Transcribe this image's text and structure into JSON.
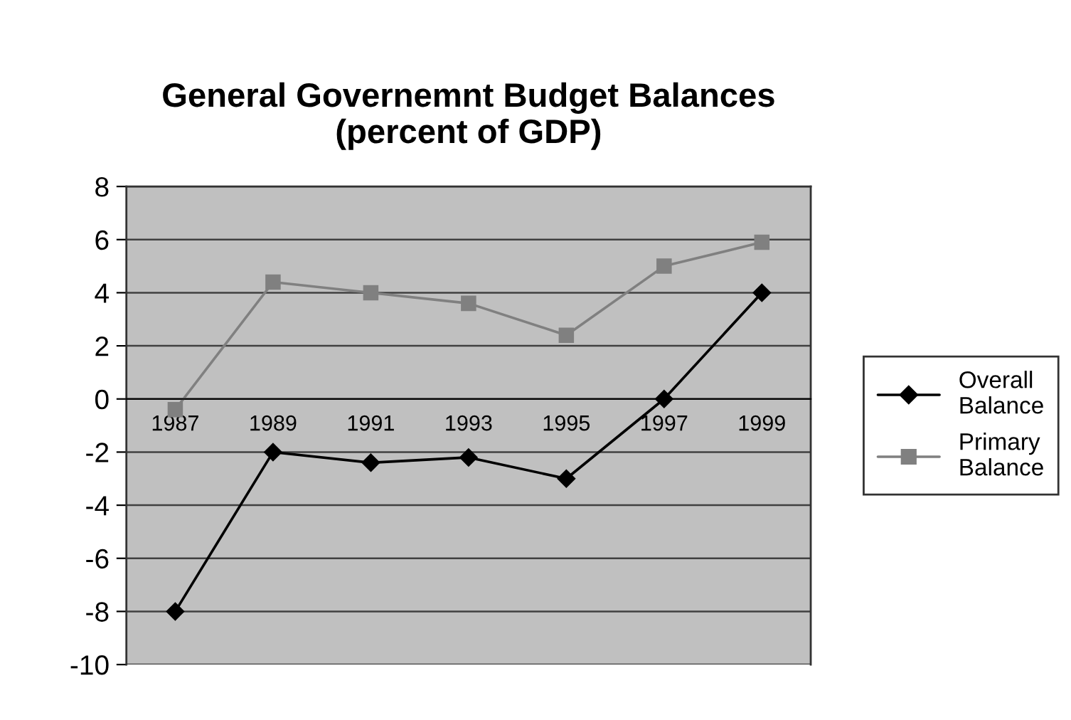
{
  "chart_data": {
    "type": "line",
    "title": "General Governemnt Budget Balances\n(percent of GDP)",
    "categories": [
      "1987",
      "1989",
      "1991",
      "1993",
      "1995",
      "1997",
      "1999"
    ],
    "series": [
      {
        "name": "Overall Balance",
        "color": "#000000",
        "marker": "diamond",
        "values": [
          -8,
          -2,
          -2.4,
          -2.2,
          -3,
          0,
          4
        ]
      },
      {
        "name": "Primary Balance",
        "color": "#808080",
        "marker": "square",
        "values": [
          -0.4,
          4.4,
          4.0,
          3.6,
          2.4,
          5.0,
          5.9
        ]
      }
    ],
    "ylim": [
      -10,
      8
    ],
    "yticks": [
      -10,
      -8,
      -6,
      -4,
      -2,
      0,
      2,
      4,
      6,
      8
    ],
    "grid": "y",
    "legend": "right",
    "line_style": "solid"
  }
}
